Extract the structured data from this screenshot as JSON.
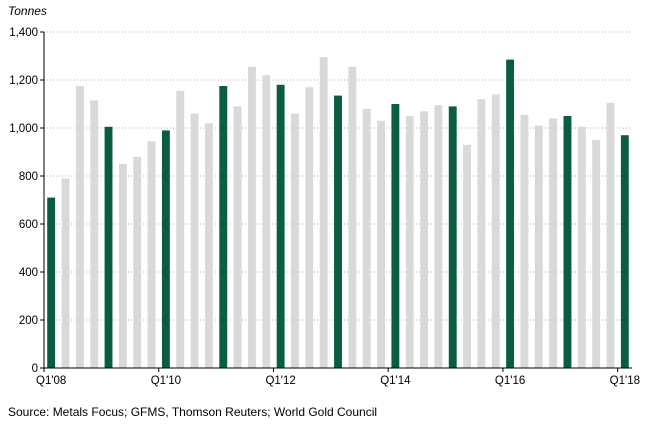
{
  "chart_data": {
    "type": "bar",
    "ylabel": "Tonnes",
    "ylim": [
      0,
      1400
    ],
    "y_ticks": [
      0,
      200,
      400,
      600,
      800,
      1000,
      1200,
      1400
    ],
    "y_tick_labels": [
      "0",
      "200",
      "400",
      "600",
      "800",
      "1,000",
      "1,200",
      "1,400"
    ],
    "grid": "horizontal dotted",
    "categories": [
      "Q1'08",
      "Q2'08",
      "Q3'08",
      "Q4'08",
      "Q1'09",
      "Q2'09",
      "Q3'09",
      "Q4'09",
      "Q1'10",
      "Q2'10",
      "Q3'10",
      "Q4'10",
      "Q1'11",
      "Q2'11",
      "Q3'11",
      "Q4'11",
      "Q1'12",
      "Q2'12",
      "Q3'12",
      "Q4'12",
      "Q1'13",
      "Q2'13",
      "Q3'13",
      "Q4'13",
      "Q1'14",
      "Q2'14",
      "Q3'14",
      "Q4'14",
      "Q1'15",
      "Q2'15",
      "Q3'15",
      "Q4'15",
      "Q1'16",
      "Q2'16",
      "Q3'16",
      "Q4'16",
      "Q1'17",
      "Q2'17",
      "Q3'17",
      "Q4'17",
      "Q1'18"
    ],
    "values": [
      710,
      790,
      1175,
      1115,
      1005,
      850,
      880,
      945,
      990,
      1155,
      1060,
      1020,
      1175,
      1090,
      1255,
      1220,
      1180,
      1060,
      1170,
      1295,
      1135,
      1255,
      1080,
      1030,
      1100,
      1050,
      1070,
      1095,
      1090,
      930,
      1120,
      1140,
      1285,
      1055,
      1010,
      1040,
      1050,
      1005,
      950,
      1105,
      970
    ],
    "x_tick_labels": [
      "Q1'08",
      "Q1'10",
      "Q1'12",
      "Q1'14",
      "Q1'16",
      "Q1'18"
    ],
    "x_tick_label_indices": [
      0,
      8,
      16,
      24,
      32,
      40
    ],
    "colors": {
      "q1": "#0b5d3f",
      "other": "#d9d9d9",
      "axis": "#000000",
      "grid": "#999999"
    }
  },
  "source": "Source: Metals Focus; GFMS, Thomson Reuters; World Gold Council"
}
